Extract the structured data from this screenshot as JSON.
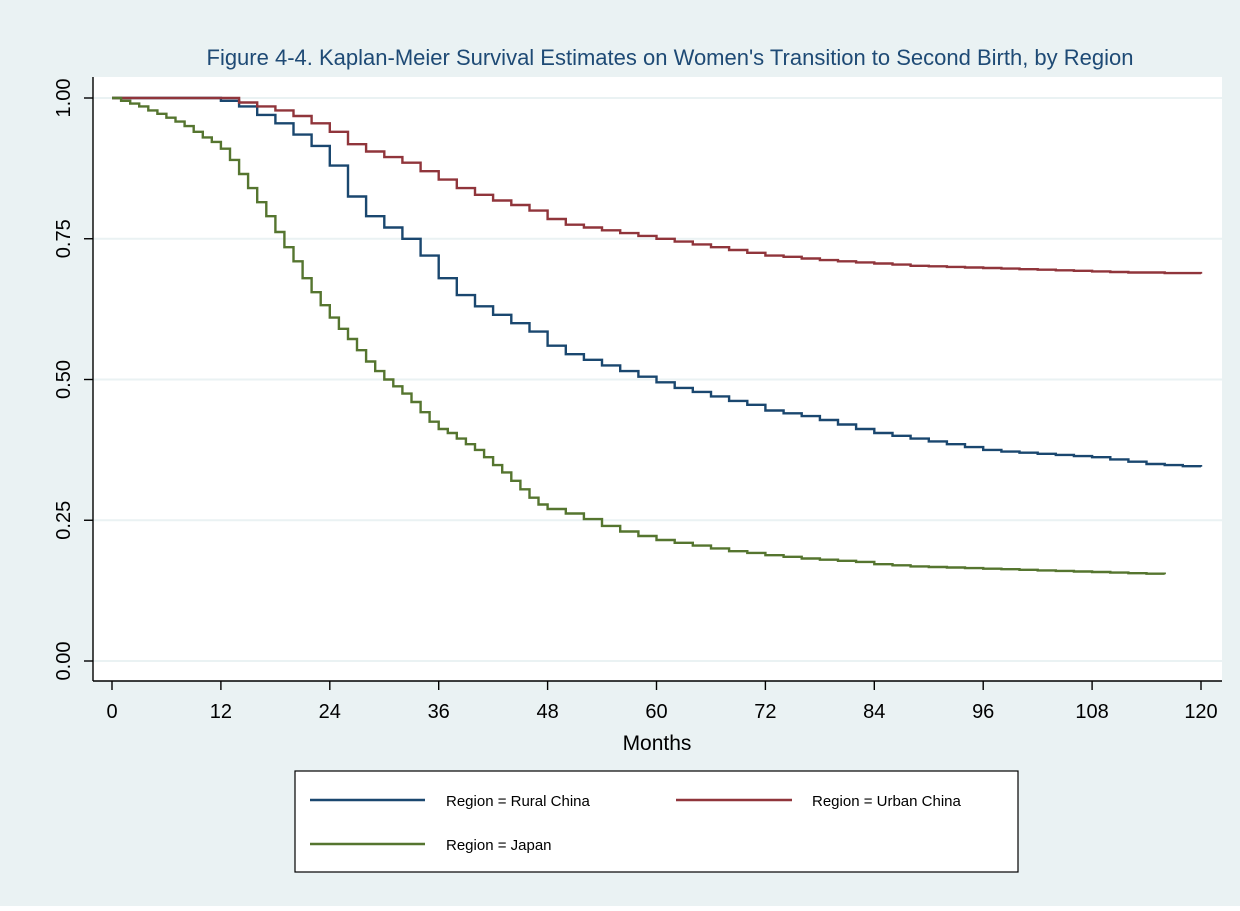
{
  "colors": {
    "background": "#eaf2f3",
    "plot_background": "#ffffff",
    "title": "#1e4a75",
    "grid": "#eaf2f3",
    "rural": "#1a476f",
    "urban": "#90353b",
    "japan": "#55752f"
  },
  "chart_data": {
    "type": "line",
    "step": true,
    "title": "Figure 4-4. Kaplan-Meier Survival Estimates on Women's Transition to Second Birth, by Region",
    "xlabel": "Months",
    "ylabel": "",
    "xlim": [
      0,
      120
    ],
    "ylim": [
      0,
      1
    ],
    "x_ticks": [
      0,
      12,
      24,
      36,
      48,
      60,
      72,
      84,
      96,
      108,
      120
    ],
    "x_tick_labels": [
      "0",
      "12",
      "24",
      "36",
      "48",
      "60",
      "72",
      "84",
      "96",
      "108",
      "120"
    ],
    "y_ticks": [
      0,
      0.25,
      0.5,
      0.75,
      1.0
    ],
    "y_tick_labels": [
      "0.00",
      "0.25",
      "0.50",
      "0.75",
      "1.00"
    ],
    "grid": true,
    "legend_position": "bottom",
    "series": [
      {
        "name": "Region = Rural China",
        "color": "#1a476f",
        "x": [
          0,
          10,
          12,
          14,
          16,
          18,
          20,
          22,
          24,
          26,
          28,
          30,
          32,
          34,
          36,
          38,
          40,
          42,
          44,
          46,
          48,
          50,
          52,
          54,
          56,
          58,
          60,
          62,
          64,
          66,
          68,
          70,
          72,
          74,
          76,
          78,
          80,
          82,
          84,
          86,
          88,
          90,
          92,
          94,
          96,
          98,
          100,
          102,
          104,
          106,
          108,
          110,
          112,
          114,
          116,
          118,
          120
        ],
        "y": [
          1.0,
          1.0,
          0.995,
          0.985,
          0.97,
          0.955,
          0.935,
          0.915,
          0.88,
          0.825,
          0.79,
          0.77,
          0.75,
          0.72,
          0.68,
          0.65,
          0.63,
          0.615,
          0.6,
          0.585,
          0.56,
          0.545,
          0.535,
          0.525,
          0.515,
          0.505,
          0.495,
          0.485,
          0.478,
          0.47,
          0.462,
          0.455,
          0.445,
          0.44,
          0.435,
          0.428,
          0.42,
          0.412,
          0.405,
          0.4,
          0.395,
          0.39,
          0.385,
          0.38,
          0.375,
          0.372,
          0.37,
          0.368,
          0.366,
          0.364,
          0.362,
          0.358,
          0.354,
          0.35,
          0.348,
          0.346,
          0.345
        ]
      },
      {
        "name": "Region = Urban China",
        "color": "#90353b",
        "x": [
          0,
          12,
          14,
          16,
          18,
          20,
          22,
          24,
          26,
          28,
          30,
          32,
          34,
          36,
          38,
          40,
          42,
          44,
          46,
          48,
          50,
          52,
          54,
          56,
          58,
          60,
          62,
          64,
          66,
          68,
          70,
          72,
          74,
          76,
          78,
          80,
          82,
          84,
          86,
          88,
          90,
          92,
          94,
          96,
          98,
          100,
          102,
          104,
          106,
          108,
          110,
          112,
          114,
          116,
          118,
          120
        ],
        "y": [
          1.0,
          1.0,
          0.992,
          0.985,
          0.978,
          0.968,
          0.955,
          0.94,
          0.918,
          0.905,
          0.895,
          0.885,
          0.87,
          0.855,
          0.84,
          0.828,
          0.818,
          0.81,
          0.8,
          0.785,
          0.775,
          0.77,
          0.765,
          0.76,
          0.755,
          0.75,
          0.745,
          0.74,
          0.735,
          0.73,
          0.725,
          0.72,
          0.718,
          0.715,
          0.712,
          0.71,
          0.708,
          0.706,
          0.704,
          0.702,
          0.701,
          0.7,
          0.699,
          0.698,
          0.697,
          0.696,
          0.695,
          0.694,
          0.693,
          0.692,
          0.691,
          0.69,
          0.69,
          0.689,
          0.689,
          0.688
        ]
      },
      {
        "name": "Region = Japan",
        "color": "#55752f",
        "x": [
          0,
          1,
          2,
          3,
          4,
          5,
          6,
          7,
          8,
          9,
          10,
          11,
          12,
          13,
          14,
          15,
          16,
          17,
          18,
          19,
          20,
          21,
          22,
          23,
          24,
          25,
          26,
          27,
          28,
          29,
          30,
          31,
          32,
          33,
          34,
          35,
          36,
          37,
          38,
          39,
          40,
          41,
          42,
          43,
          44,
          45,
          46,
          47,
          48,
          50,
          52,
          54,
          56,
          58,
          60,
          62,
          64,
          66,
          68,
          70,
          72,
          74,
          76,
          78,
          80,
          82,
          84,
          86,
          88,
          90,
          92,
          94,
          96,
          98,
          100,
          102,
          104,
          106,
          108,
          110,
          112,
          114,
          116
        ],
        "y": [
          1.0,
          0.995,
          0.99,
          0.985,
          0.978,
          0.972,
          0.965,
          0.958,
          0.95,
          0.94,
          0.93,
          0.922,
          0.91,
          0.89,
          0.865,
          0.84,
          0.815,
          0.79,
          0.762,
          0.735,
          0.71,
          0.68,
          0.655,
          0.632,
          0.61,
          0.59,
          0.572,
          0.552,
          0.532,
          0.515,
          0.5,
          0.488,
          0.475,
          0.46,
          0.442,
          0.425,
          0.412,
          0.405,
          0.395,
          0.385,
          0.375,
          0.362,
          0.348,
          0.335,
          0.32,
          0.305,
          0.29,
          0.278,
          0.27,
          0.262,
          0.252,
          0.24,
          0.23,
          0.222,
          0.215,
          0.21,
          0.205,
          0.2,
          0.195,
          0.192,
          0.188,
          0.185,
          0.182,
          0.18,
          0.178,
          0.176,
          0.172,
          0.17,
          0.168,
          0.167,
          0.166,
          0.165,
          0.164,
          0.163,
          0.162,
          0.161,
          0.16,
          0.159,
          0.158,
          0.157,
          0.156,
          0.155,
          0.154
        ]
      }
    ]
  }
}
